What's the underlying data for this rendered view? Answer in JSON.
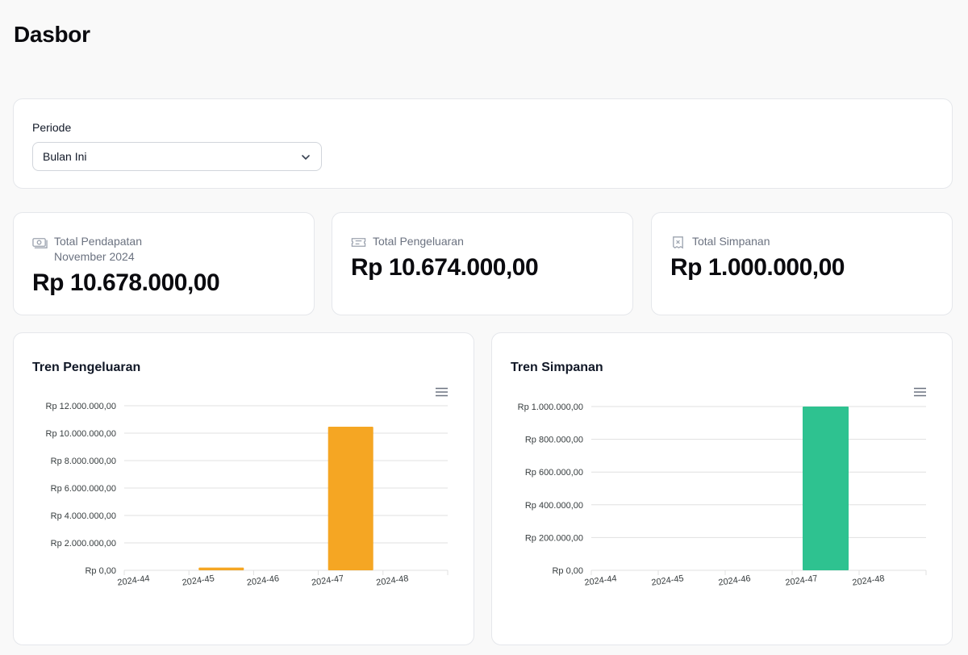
{
  "header": {
    "title": "Dasbor"
  },
  "filter": {
    "label": "Periode",
    "selected": "Bulan Ini"
  },
  "stats": [
    {
      "label": "Total Pendapatan",
      "sublabel": "November 2024",
      "value": "Rp 10.678.000,00",
      "icon": "money-icon"
    },
    {
      "label": "Total Pengeluaran",
      "value": "Rp 10.674.000,00",
      "icon": "ticket-icon"
    },
    {
      "label": "Total Simpanan",
      "value": "Rp 1.000.000,00",
      "icon": "receipt-icon"
    }
  ],
  "charts": {
    "pengeluaran": {
      "title": "Tren Pengeluaran"
    },
    "simpanan": {
      "title": "Tren Simpanan"
    }
  },
  "chart_data": [
    {
      "type": "bar",
      "title": "Tren Pengeluaran",
      "categories": [
        "2024-44",
        "2024-45",
        "2024-46",
        "2024-47",
        "2024-48"
      ],
      "values": [
        0,
        200000,
        0,
        10474000,
        0
      ],
      "ylim": [
        0,
        12000000
      ],
      "yticks": [
        0,
        2000000,
        4000000,
        6000000,
        8000000,
        10000000,
        12000000
      ],
      "ytick_labels": [
        "Rp 0,00",
        "Rp 2.000.000,00",
        "Rp 4.000.000,00",
        "Rp 6.000.000,00",
        "Rp 8.000.000,00",
        "Rp 10.000.000,00",
        "Rp 12.000.000,00"
      ],
      "color": "#f5a623",
      "grid": true
    },
    {
      "type": "bar",
      "title": "Tren Simpanan",
      "categories": [
        "2024-44",
        "2024-45",
        "2024-46",
        "2024-47",
        "2024-48"
      ],
      "values": [
        0,
        0,
        0,
        1000000,
        0
      ],
      "ylim": [
        0,
        1000000
      ],
      "yticks": [
        0,
        200000,
        400000,
        600000,
        800000,
        1000000
      ],
      "ytick_labels": [
        "Rp 0,00",
        "Rp 200.000,00",
        "Rp 400.000,00",
        "Rp 600.000,00",
        "Rp 800.000,00",
        "Rp 1.000.000,00"
      ],
      "color": "#2ec290",
      "grid": true
    }
  ]
}
